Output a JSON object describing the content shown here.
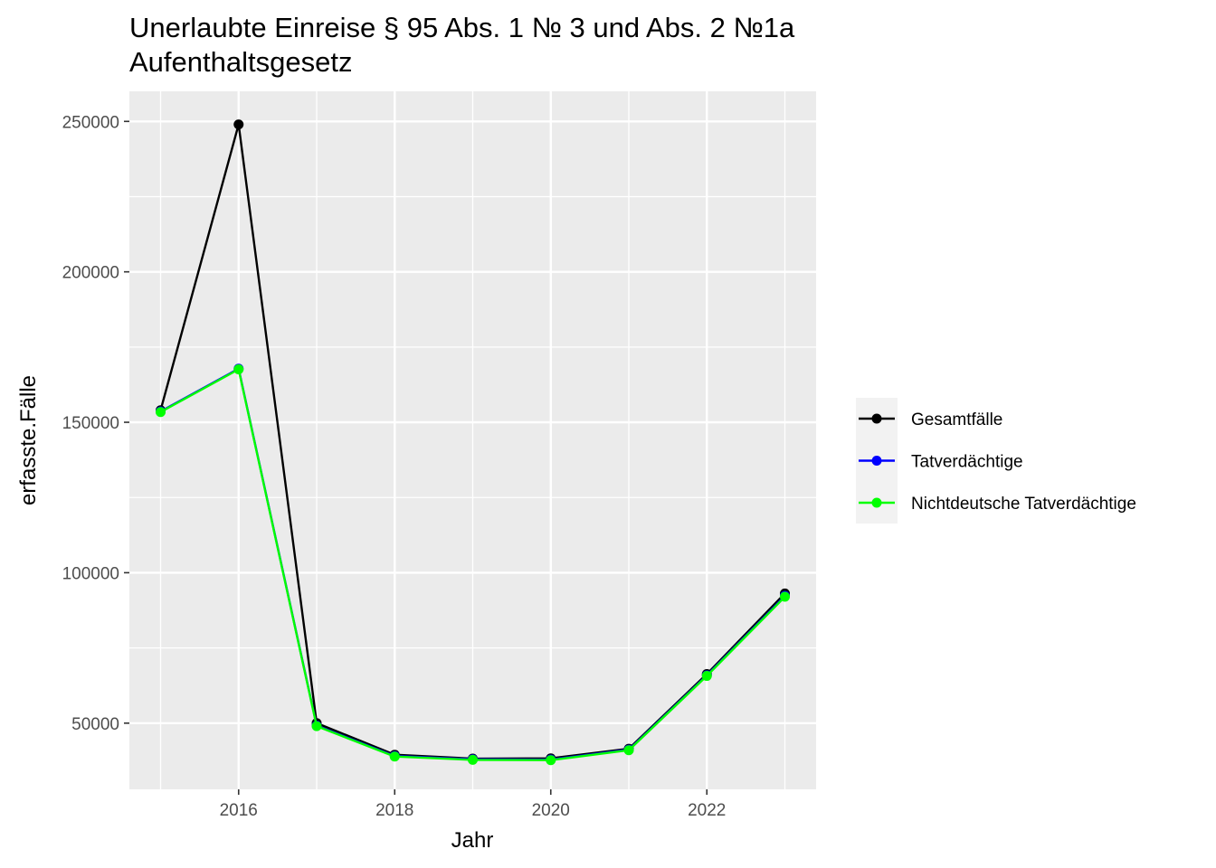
{
  "chart_data": {
    "type": "line",
    "title_lines": [
      "Unerlaubte Einreise § 95 Abs. 1 № 3 und Abs. 2 №1a",
      "Aufenthaltsgesetz"
    ],
    "xlabel": "Jahr",
    "ylabel": "erfasste.Fälle",
    "x": [
      2015,
      2016,
      2017,
      2018,
      2019,
      2020,
      2021,
      2022,
      2023
    ],
    "xlim": [
      2014.6,
      2023.4
    ],
    "ylim": [
      28000,
      260000
    ],
    "x_ticks": [
      2016,
      2018,
      2020,
      2022
    ],
    "x_minor_ticks": [
      2015,
      2017,
      2019,
      2021,
      2023
    ],
    "y_ticks": [
      50000,
      100000,
      150000,
      200000,
      250000
    ],
    "y_minor_ticks": [
      75000,
      125000,
      175000,
      225000
    ],
    "grid": true,
    "legend_position": "right",
    "series": [
      {
        "name": "Gesamtfälle",
        "color": "#000000",
        "values": [
          154000,
          249000,
          50000,
          39500,
          38200,
          38300,
          41500,
          66300,
          93100
        ]
      },
      {
        "name": "Tatverdächtige",
        "color": "#0000ff",
        "values": [
          153600,
          167800,
          49200,
          39100,
          38000,
          37900,
          41200,
          65900,
          92300
        ]
      },
      {
        "name": "Nichtdeutsche Tatverdächtige",
        "color": "#00ff00",
        "values": [
          153400,
          167600,
          49000,
          38900,
          37800,
          37700,
          41000,
          65700,
          92000
        ]
      }
    ]
  }
}
